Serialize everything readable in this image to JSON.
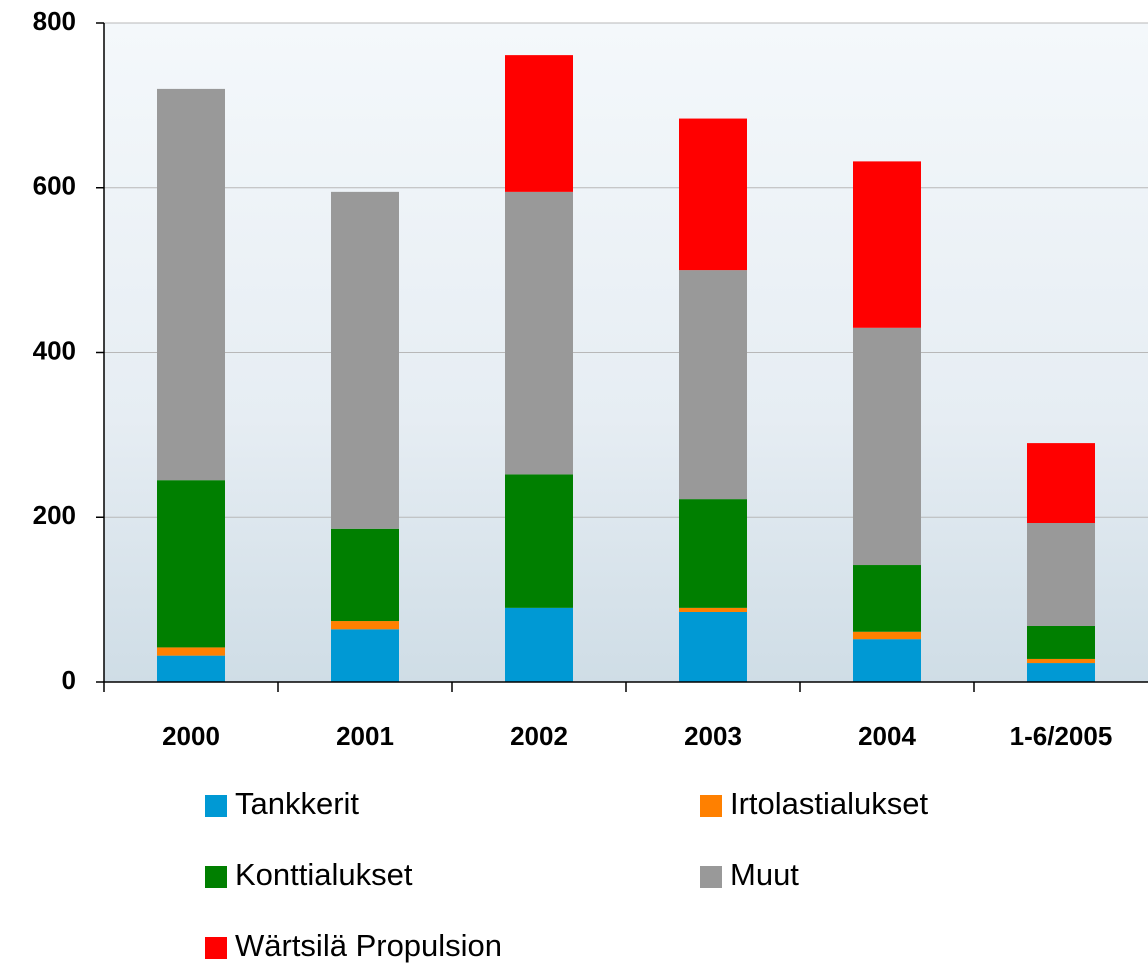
{
  "chart_data": {
    "type": "stacked_bar",
    "categories": [
      "2000",
      "2001",
      "2002",
      "2003",
      "2004",
      "1-6/2005"
    ],
    "series": [
      {
        "name": "Tankkerit",
        "color": "#0099d4",
        "values": [
          32,
          64,
          90,
          85,
          52,
          23
        ]
      },
      {
        "name": "Irtolastialukset",
        "color": "#ff8000",
        "values": [
          10,
          10,
          0,
          5,
          9,
          5
        ]
      },
      {
        "name": "Konttialukset",
        "color": "#007f00",
        "values": [
          203,
          112,
          162,
          132,
          81,
          40
        ]
      },
      {
        "name": "Muut",
        "color": "#999999",
        "values": [
          475,
          409,
          343,
          278,
          288,
          125
        ]
      },
      {
        "name": "Wärtsilä Propulsion",
        "color": "#ff0000",
        "values": [
          0,
          0,
          166,
          184,
          202,
          97
        ]
      }
    ],
    "ylim": [
      0,
      800
    ],
    "yticks": [
      0,
      200,
      400,
      600,
      800
    ],
    "grid": true,
    "legend": "bottom"
  }
}
